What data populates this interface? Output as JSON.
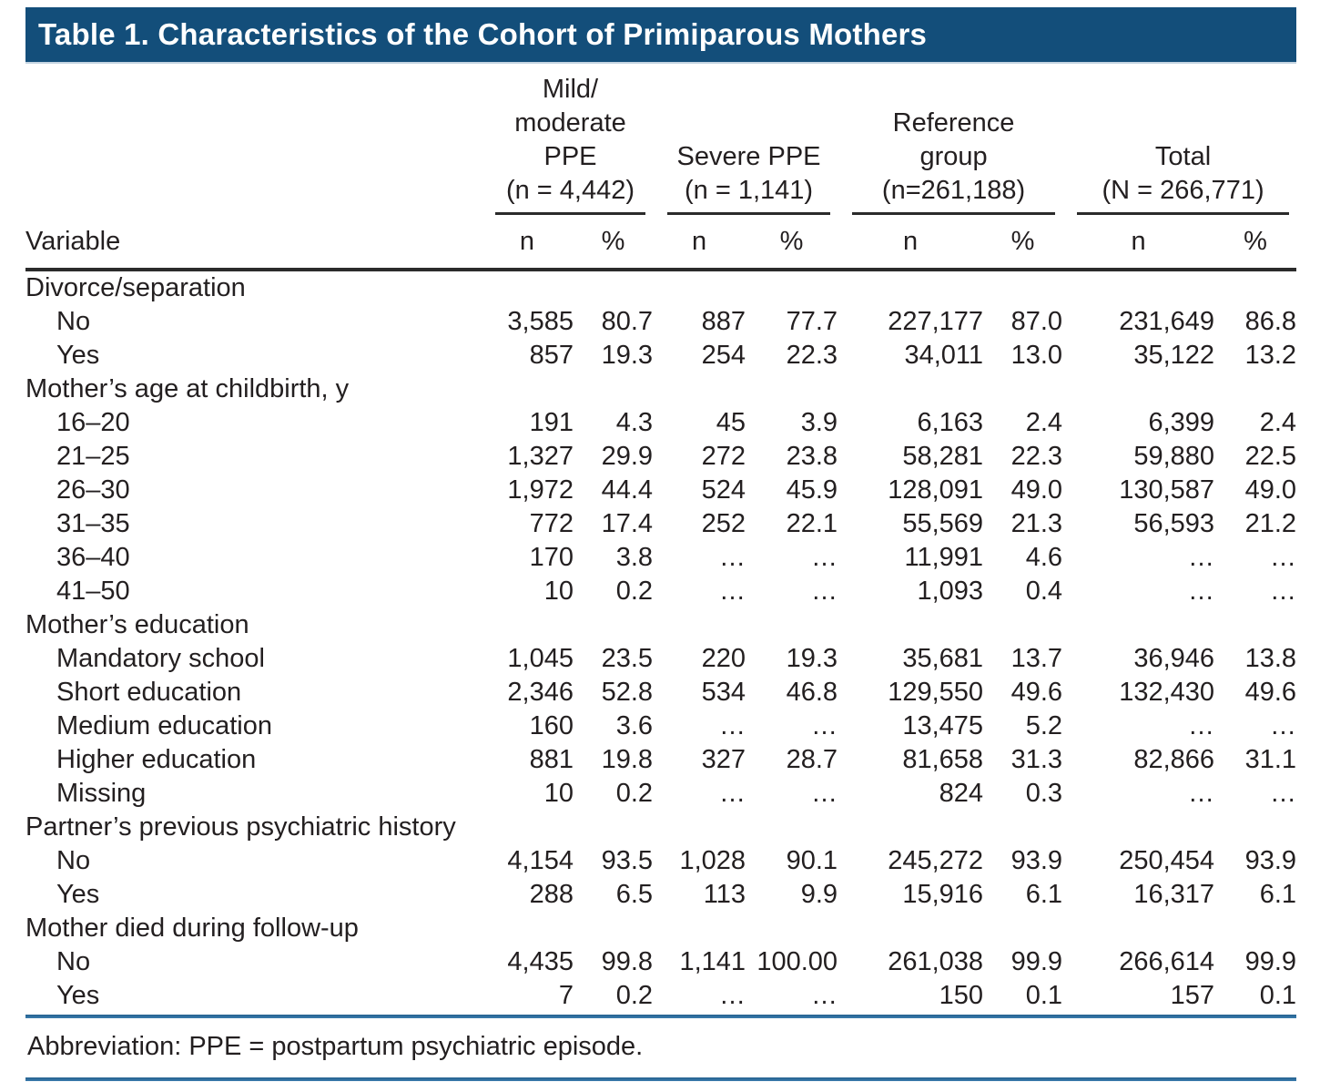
{
  "title": "Table 1. Characteristics of the Cohort of Primiparous Mothers",
  "colors": {
    "title_bar": "#134e7a",
    "rule_blue": "#2e6d9e",
    "rule_dark": "#2b2b2b",
    "text": "#231f20"
  },
  "table": {
    "variable_header": "Variable",
    "groups": [
      {
        "label": "Mild/\nmoderate\nPPE\n(n = 4,442)",
        "sub": [
          "n",
          "%"
        ]
      },
      {
        "label": "Severe PPE\n(n = 1,141)",
        "sub": [
          "n",
          "%"
        ]
      },
      {
        "label": "Reference\ngroup\n(n=261,188)",
        "sub": [
          "n",
          "%"
        ]
      },
      {
        "label": "Total\n(N = 266,771)",
        "sub": [
          "n",
          "%"
        ]
      }
    ],
    "rows": [
      {
        "category": true,
        "label": "Divorce/separation",
        "values": []
      },
      {
        "category": false,
        "label": "No",
        "values": [
          "3,585",
          "80.7",
          "887",
          "77.7",
          "227,177",
          "87.0",
          "231,649",
          "86.8"
        ]
      },
      {
        "category": false,
        "label": "Yes",
        "values": [
          "857",
          "19.3",
          "254",
          "22.3",
          "34,011",
          "13.0",
          "35,122",
          "13.2"
        ]
      },
      {
        "category": true,
        "label": "Mother’s age at childbirth, y",
        "values": []
      },
      {
        "category": false,
        "label": "16–20",
        "values": [
          "191",
          "4.3",
          "45",
          "3.9",
          "6,163",
          "2.4",
          "6,399",
          "2.4"
        ]
      },
      {
        "category": false,
        "label": "21–25",
        "values": [
          "1,327",
          "29.9",
          "272",
          "23.8",
          "58,281",
          "22.3",
          "59,880",
          "22.5"
        ]
      },
      {
        "category": false,
        "label": "26–30",
        "values": [
          "1,972",
          "44.4",
          "524",
          "45.9",
          "128,091",
          "49.0",
          "130,587",
          "49.0"
        ]
      },
      {
        "category": false,
        "label": "31–35",
        "values": [
          "772",
          "17.4",
          "252",
          "22.1",
          "55,569",
          "21.3",
          "56,593",
          "21.2"
        ]
      },
      {
        "category": false,
        "label": "36–40",
        "values": [
          "170",
          "3.8",
          "…",
          "…",
          "11,991",
          "4.6",
          "…",
          "…"
        ]
      },
      {
        "category": false,
        "label": "41–50",
        "values": [
          "10",
          "0.2",
          "…",
          "…",
          "1,093",
          "0.4",
          "…",
          "…"
        ]
      },
      {
        "category": true,
        "label": "Mother’s education",
        "values": []
      },
      {
        "category": false,
        "label": "Mandatory school",
        "values": [
          "1,045",
          "23.5",
          "220",
          "19.3",
          "35,681",
          "13.7",
          "36,946",
          "13.8"
        ]
      },
      {
        "category": false,
        "label": "Short education",
        "values": [
          "2,346",
          "52.8",
          "534",
          "46.8",
          "129,550",
          "49.6",
          "132,430",
          "49.6"
        ]
      },
      {
        "category": false,
        "label": "Medium education",
        "values": [
          "160",
          "3.6",
          "…",
          "…",
          "13,475",
          "5.2",
          "…",
          "…"
        ]
      },
      {
        "category": false,
        "label": "Higher education",
        "values": [
          "881",
          "19.8",
          "327",
          "28.7",
          "81,658",
          "31.3",
          "82,866",
          "31.1"
        ]
      },
      {
        "category": false,
        "label": "Missing",
        "values": [
          "10",
          "0.2",
          "…",
          "…",
          "824",
          "0.3",
          "…",
          "…"
        ]
      },
      {
        "category": true,
        "label": "Partner’s previous psychiatric history",
        "values": []
      },
      {
        "category": false,
        "label": "No",
        "values": [
          "4,154",
          "93.5",
          "1,028",
          "90.1",
          "245,272",
          "93.9",
          "250,454",
          "93.9"
        ]
      },
      {
        "category": false,
        "label": "Yes",
        "values": [
          "288",
          "6.5",
          "113",
          "9.9",
          "15,916",
          "6.1",
          "16,317",
          "6.1"
        ]
      },
      {
        "category": true,
        "label": "Mother died during follow-up",
        "values": []
      },
      {
        "category": false,
        "label": "No",
        "values": [
          "4,435",
          "99.8",
          "1,141",
          "100.00",
          "261,038",
          "99.9",
          "266,614",
          "99.9"
        ]
      },
      {
        "category": false,
        "label": "Yes",
        "values": [
          "7",
          "0.2",
          "…",
          "…",
          "150",
          "0.1",
          "157",
          "0.1"
        ]
      }
    ]
  },
  "footnote": "Abbreviation: PPE = postpartum psychiatric episode."
}
